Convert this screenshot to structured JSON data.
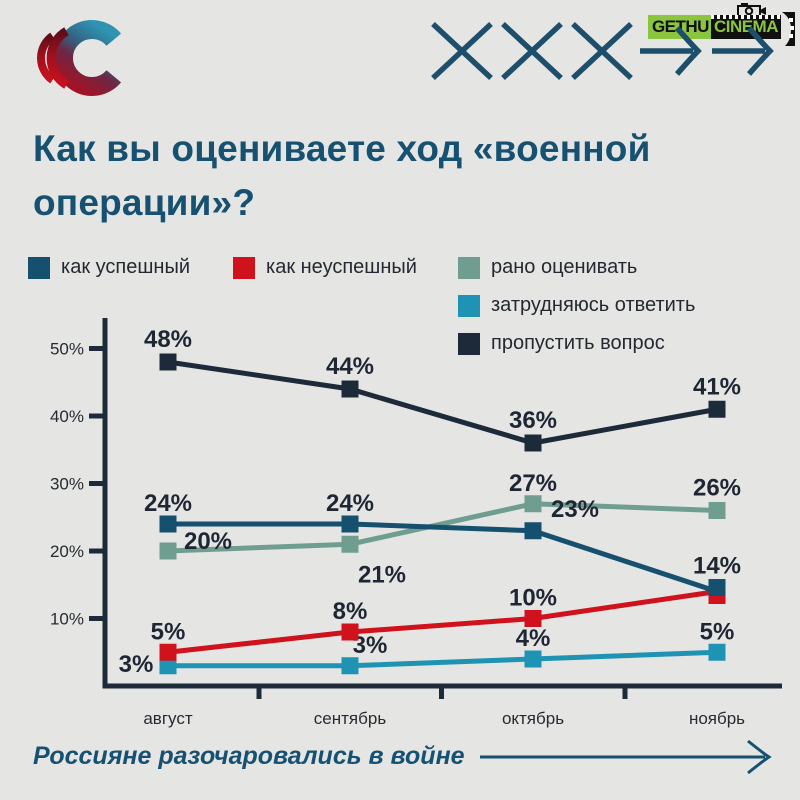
{
  "title": "Как вы оцениваете ход «военной операции»?",
  "watermark": {
    "line1": "GETHU",
    "line2": "CINEMA"
  },
  "tagline": {
    "text": "Россияне разочаровались в войне"
  },
  "colors": {
    "background": "#e5e5e3",
    "title_text": "#175172",
    "axis": "#1d2a3a",
    "data_label": "#1e2633",
    "watermark_green": "#8bc43f",
    "series_successful": "#15506e",
    "series_unsuccessful": "#d0121d",
    "series_too_early": "#6f9e90",
    "series_hard_to_answer": "#1f93b4",
    "series_skip": "#1d2a3a"
  },
  "chart_data": {
    "type": "line",
    "categories": [
      "август",
      "сентябрь",
      "октябрь",
      "ноябрь"
    ],
    "series": [
      {
        "name": "как успешный",
        "color": "#15506e",
        "values": [
          24,
          24,
          23,
          14
        ]
      },
      {
        "name": "как неуспешный",
        "color": "#d0121d",
        "values": [
          5,
          8,
          10,
          14
        ]
      },
      {
        "name": "рано оценивать",
        "color": "#6f9e90",
        "values": [
          20,
          21,
          27,
          26
        ]
      },
      {
        "name": "затрудняюсь ответить",
        "color": "#1f93b4",
        "values": [
          3,
          3,
          4,
          5
        ]
      },
      {
        "name": "пропустить вопрос",
        "color": "#1d2a3a",
        "values": [
          48,
          44,
          36,
          41
        ]
      }
    ],
    "title": "Как вы оцениваете ход «военной операции»?",
    "xlabel": "",
    "ylabel": "",
    "ylim": [
      0,
      54
    ],
    "yticks": [
      10,
      20,
      30,
      40,
      50
    ],
    "ytick_suffix": "%",
    "data_label_suffix": "%",
    "grid": false,
    "legend_position": "top",
    "data_labels": true
  }
}
